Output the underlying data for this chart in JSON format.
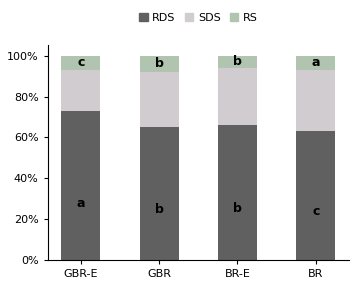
{
  "categories": [
    "GBR-E",
    "GBR",
    "BR-E",
    "BR"
  ],
  "RDS": [
    73.0,
    65.0,
    66.0,
    63.0
  ],
  "SDS": [
    20.0,
    27.0,
    28.0,
    30.0
  ],
  "RS": [
    7.0,
    8.0,
    6.0,
    7.0
  ],
  "rds_labels": [
    "a",
    "b",
    "b",
    "c"
  ],
  "rs_labels": [
    "c",
    "b",
    "b",
    "a"
  ],
  "rds_color": "#606060",
  "sds_color": "#d0ccd0",
  "rs_color": "#b0c4b0",
  "background_color": "#ffffff",
  "legend_labels": [
    "RDS",
    "SDS",
    "RS"
  ],
  "ytick_labels": [
    "0%",
    "20%",
    "40%",
    "60%",
    "80%",
    "100%"
  ],
  "ytick_values": [
    0,
    20,
    40,
    60,
    80,
    100
  ],
  "label_fontsize": 9,
  "tick_fontsize": 8,
  "legend_fontsize": 8,
  "bar_width": 0.5
}
